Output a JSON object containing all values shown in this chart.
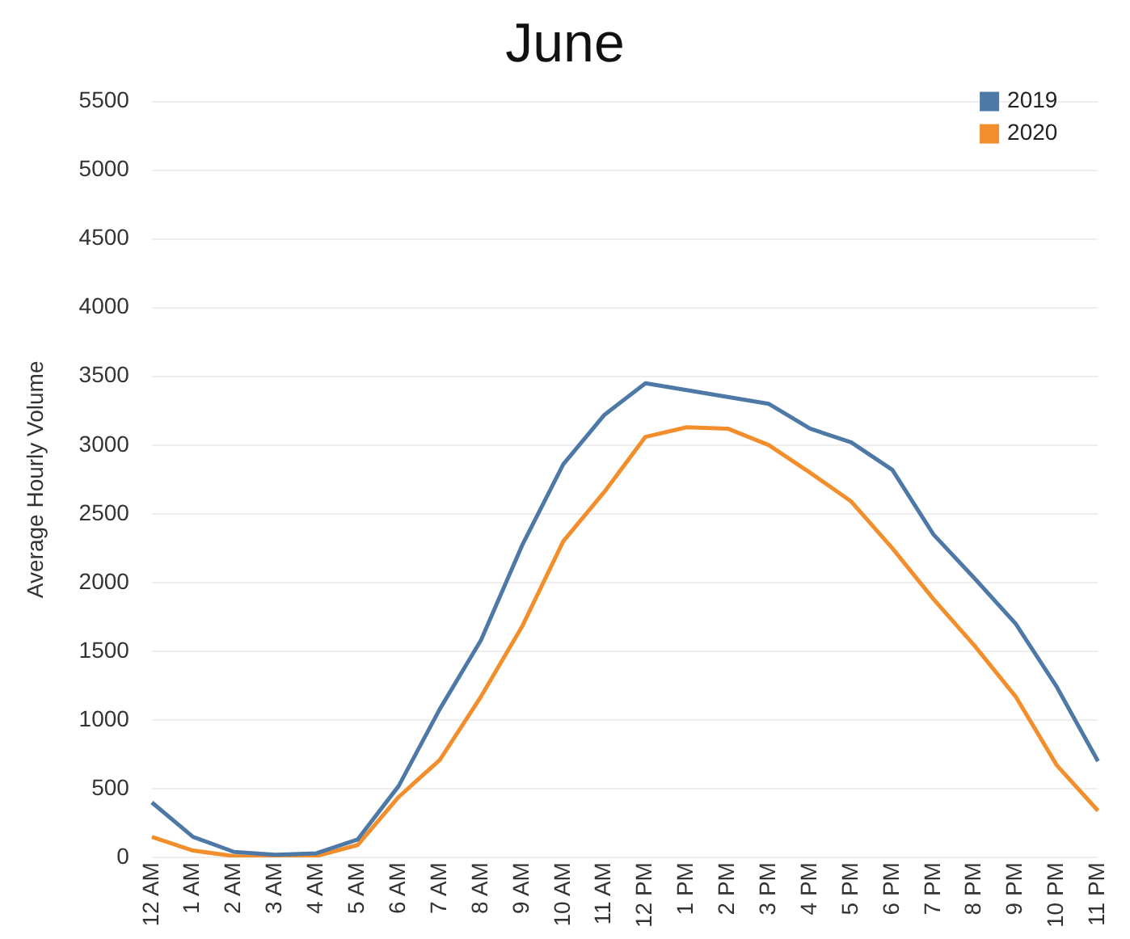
{
  "chart_data": {
    "type": "line",
    "title": "June",
    "ylabel": "Average Hourly Volume",
    "categories": [
      "12 AM",
      "1 AM",
      "2 AM",
      "3 AM",
      "4 AM",
      "5 AM",
      "6 AM",
      "7 AM",
      "8 AM",
      "9 AM",
      "10 AM",
      "11 AM",
      "12 PM",
      "1 PM",
      "2 PM",
      "3 PM",
      "4 PM",
      "5 PM",
      "6 PM",
      "7 PM",
      "8 PM",
      "9 PM",
      "10 PM",
      "11 PM"
    ],
    "series": [
      {
        "name": "2019",
        "color": "#4e79a7",
        "values": [
          400,
          150,
          40,
          20,
          30,
          130,
          520,
          1080,
          1580,
          2270,
          2860,
          3220,
          3450,
          3400,
          3350,
          3300,
          3120,
          3020,
          2820,
          2350,
          2030,
          1700,
          1240,
          700
        ]
      },
      {
        "name": "2020",
        "color": "#f28e2b",
        "values": [
          150,
          50,
          10,
          0,
          10,
          90,
          440,
          710,
          1170,
          1680,
          2300,
          2660,
          3060,
          3130,
          3120,
          3000,
          2800,
          2590,
          2250,
          1880,
          1540,
          1170,
          670,
          340
        ]
      }
    ],
    "ylim": [
      0,
      5500
    ],
    "yticks": [
      0,
      500,
      1000,
      1500,
      2000,
      2500,
      3000,
      3500,
      4000,
      4500,
      5000,
      5500
    ],
    "grid": "y",
    "legend": "top right",
    "marker": "none",
    "line_style": "solid"
  }
}
